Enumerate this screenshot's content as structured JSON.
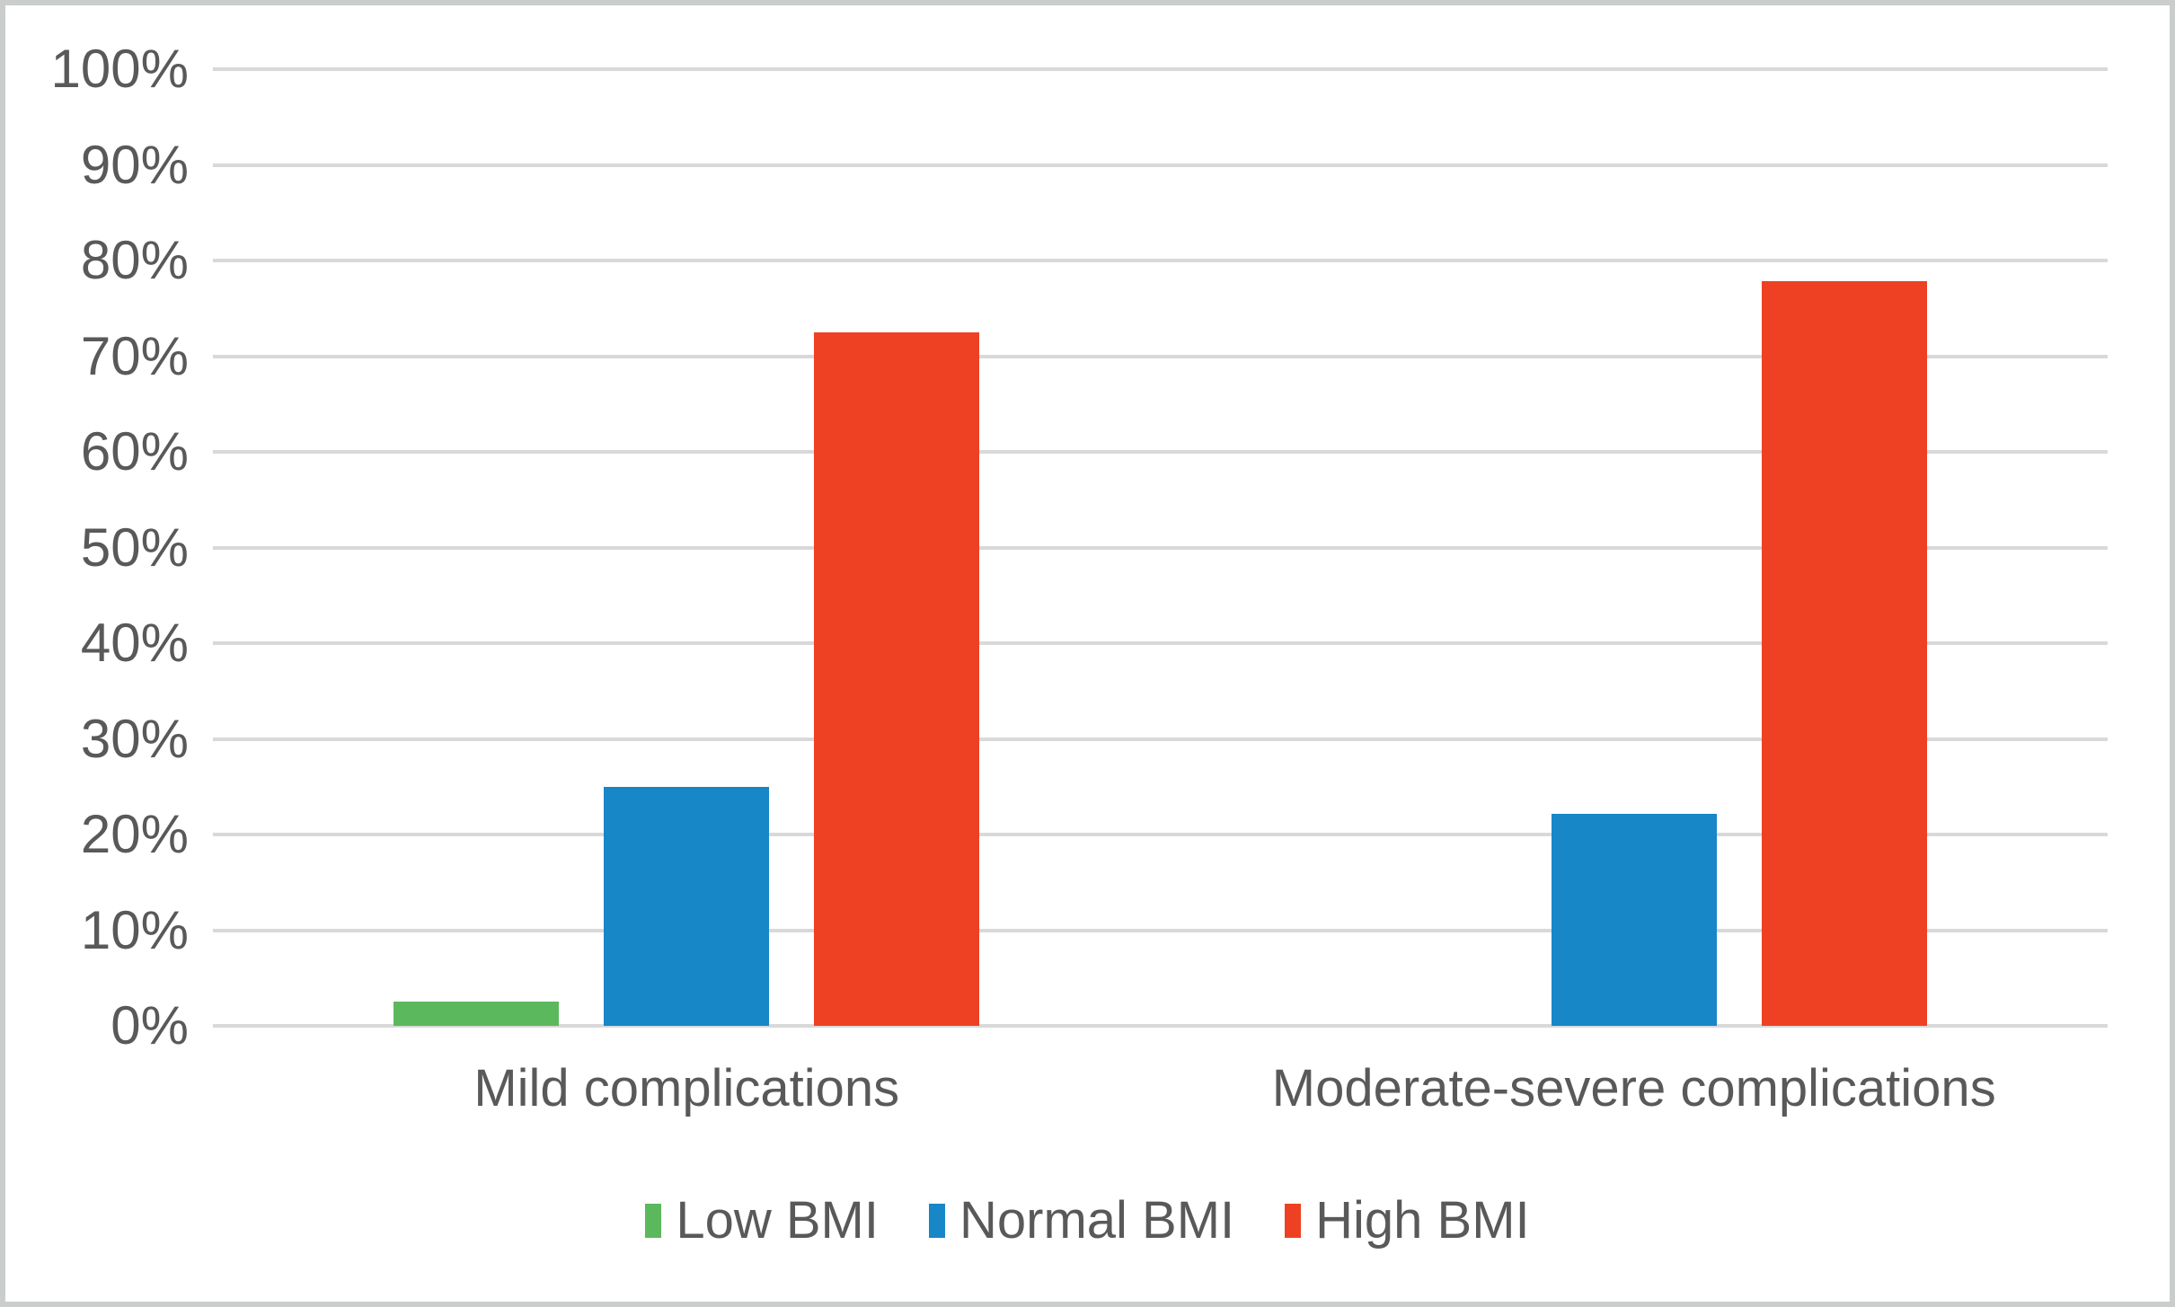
{
  "chart_data": {
    "type": "bar",
    "title": "",
    "xlabel": "",
    "ylabel": "",
    "categories": [
      "Mild complications",
      "Moderate-severe complications"
    ],
    "series": [
      {
        "name": "Low BMI",
        "color": "#5cb85c",
        "values": [
          2.5,
          0
        ]
      },
      {
        "name": "Normal BMI",
        "color": "#1787c8",
        "values": [
          25,
          22.2
        ]
      },
      {
        "name": "High BMI",
        "color": "#ee4123",
        "values": [
          72.5,
          77.8
        ]
      }
    ],
    "ylim": [
      0,
      100
    ],
    "ytick_step": 10,
    "ytick_labels": [
      "0%",
      "10%",
      "20%",
      "30%",
      "40%",
      "50%",
      "60%",
      "70%",
      "80%",
      "90%",
      "100%"
    ],
    "grid": "horizontal",
    "legend_position": "bottom",
    "legend_labels": [
      "Low BMI",
      "Normal BMI",
      "High BMI"
    ]
  },
  "colors": {
    "text": "#595959",
    "gridline": "#d9d9d9",
    "baseline": "#d9d9d9",
    "frame_border": "#cacdcb",
    "background": "#ffffff"
  }
}
